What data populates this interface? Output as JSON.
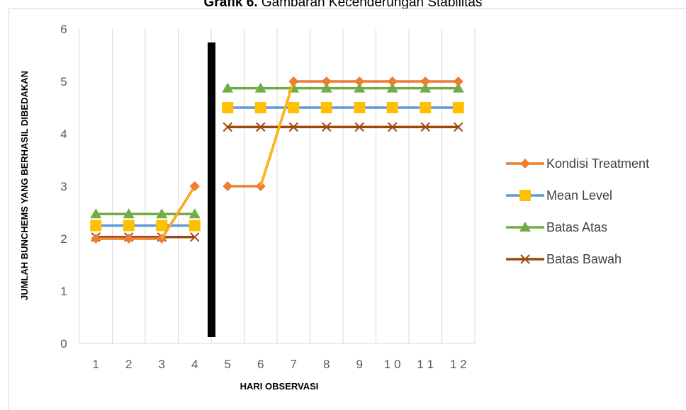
{
  "title": {
    "bold": "Grafik 6.",
    "rest": " Gambaran Kecenderungan Stabilitas"
  },
  "chart_data": {
    "type": "line",
    "title": "Grafik 6. Gambaran Kecenderungan Stabilitas",
    "xlabel": "HARI OBSERVASI",
    "ylabel": "JUMLAH BUNCHEMS YANG BERHASIL DIBEDAKAN",
    "categories": [
      "1",
      "2",
      "3",
      "4",
      "5",
      "6",
      "7",
      "8",
      "9",
      "10",
      "11",
      "12"
    ],
    "ylim": [
      0,
      6
    ],
    "yticks": [
      0,
      1,
      2,
      3,
      4,
      5,
      6
    ],
    "grid": "vertical",
    "legend_position": "right",
    "phase_divider_between": [
      "4",
      "5"
    ],
    "series": [
      {
        "name": "Kondisi Treatment",
        "color": "#ed7d31",
        "marker": "diamond",
        "segments": [
          {
            "x": [
              "1",
              "2",
              "3",
              "4"
            ],
            "values": [
              2,
              2,
              2,
              3
            ]
          },
          {
            "x": [
              "5",
              "6",
              "7",
              "8",
              "9",
              "10",
              "11",
              "12"
            ],
            "values": [
              3,
              3,
              5,
              5,
              5,
              5,
              5,
              5
            ]
          }
        ]
      },
      {
        "name": "Mean Level",
        "color": "#5b9bd5",
        "marker_color": "#ffc000",
        "marker": "square",
        "segments": [
          {
            "x": [
              "1",
              "2",
              "3",
              "4"
            ],
            "values": [
              2.25,
              2.25,
              2.25,
              2.25
            ]
          },
          {
            "x": [
              "5",
              "6",
              "7",
              "8",
              "9",
              "10",
              "11",
              "12"
            ],
            "values": [
              4.5,
              4.5,
              4.5,
              4.5,
              4.5,
              4.5,
              4.5,
              4.5
            ]
          }
        ]
      },
      {
        "name": "Batas Atas",
        "color": "#70ad47",
        "marker": "triangle",
        "segments": [
          {
            "x": [
              "1",
              "2",
              "3",
              "4"
            ],
            "values": [
              2.47,
              2.47,
              2.47,
              2.47
            ]
          },
          {
            "x": [
              "5",
              "6",
              "7",
              "8",
              "9",
              "10",
              "11",
              "12"
            ],
            "values": [
              4.87,
              4.87,
              4.87,
              4.87,
              4.87,
              4.87,
              4.87,
              4.87
            ]
          }
        ]
      },
      {
        "name": "Batas Bawah",
        "color": "#9e480e",
        "marker": "x",
        "segments": [
          {
            "x": [
              "1",
              "2",
              "3",
              "4"
            ],
            "values": [
              2.03,
              2.03,
              2.03,
              2.03
            ]
          },
          {
            "x": [
              "5",
              "6",
              "7",
              "8",
              "9",
              "10",
              "11",
              "12"
            ],
            "values": [
              4.13,
              4.13,
              4.13,
              4.13,
              4.13,
              4.13,
              4.13,
              4.13
            ]
          }
        ]
      }
    ],
    "connector_color": "#ffc000"
  }
}
